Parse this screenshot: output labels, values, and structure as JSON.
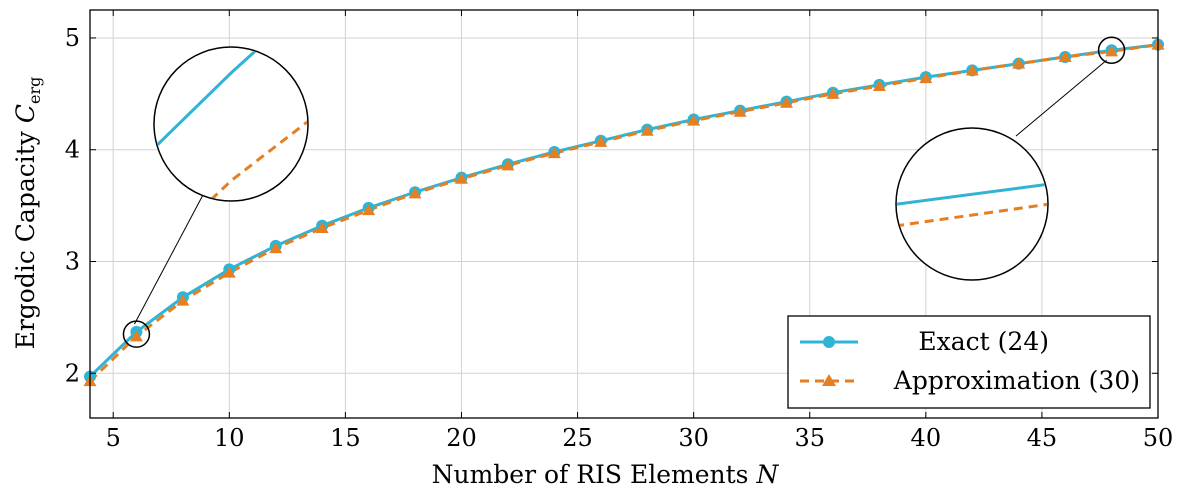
{
  "chart_data": {
    "type": "line",
    "xlabel": "Number of RIS Elements",
    "xlabel_symbol": "N",
    "ylabel": "Ergodic Capacity",
    "ylabel_symbol": "C",
    "ylabel_subscript": "erg",
    "xlim": [
      4,
      50
    ],
    "ylim": [
      1.6,
      5.25
    ],
    "xticks": [
      5,
      10,
      15,
      20,
      25,
      30,
      35,
      40,
      45,
      50
    ],
    "yticks": [
      2,
      3,
      4,
      5
    ],
    "grid": true,
    "legend_position": "bottom-right",
    "x": [
      4,
      6,
      8,
      10,
      12,
      14,
      16,
      18,
      20,
      22,
      24,
      26,
      28,
      30,
      32,
      34,
      36,
      38,
      40,
      42,
      44,
      46,
      48,
      50
    ],
    "series": [
      {
        "name": "Exact (24)",
        "color": "#2fb4d3",
        "marker": "circle",
        "dash": "solid",
        "values": [
          1.97,
          2.37,
          2.68,
          2.93,
          3.14,
          3.32,
          3.48,
          3.62,
          3.75,
          3.87,
          3.98,
          4.08,
          4.18,
          4.27,
          4.35,
          4.43,
          4.51,
          4.58,
          4.65,
          4.71,
          4.77,
          4.83,
          4.89,
          4.94
        ]
      },
      {
        "name": "Approximation (30)",
        "color": "#e67e22",
        "marker": "triangle",
        "dash": "dashed",
        "values": [
          1.93,
          2.33,
          2.65,
          2.9,
          3.12,
          3.3,
          3.46,
          3.61,
          3.74,
          3.86,
          3.97,
          4.07,
          4.17,
          4.26,
          4.34,
          4.42,
          4.5,
          4.57,
          4.64,
          4.71,
          4.77,
          4.83,
          4.88,
          4.94
        ]
      }
    ],
    "zoom_insets": [
      {
        "x": 6,
        "y": 2.35
      },
      {
        "x": 48,
        "y": 4.89
      }
    ]
  }
}
